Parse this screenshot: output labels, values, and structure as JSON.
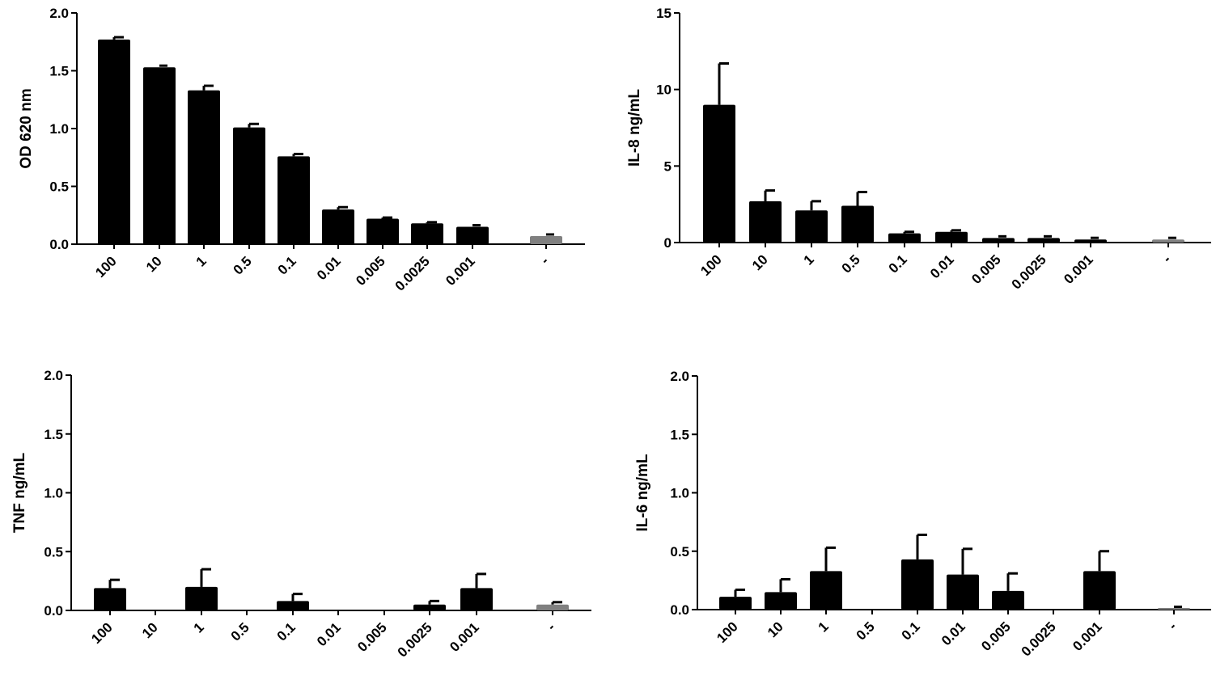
{
  "chart_data": [
    {
      "type": "bar",
      "ylabel": "OD 620 nm",
      "ylim": [
        0,
        2.0
      ],
      "yticks": [
        0.0,
        0.5,
        1.0,
        1.5,
        2.0
      ],
      "ytick_labels": [
        "0.0",
        "0.5",
        "1.0",
        "1.5",
        "2.0"
      ],
      "categories": [
        "100",
        "10",
        "1",
        "0.5",
        "0.1",
        "0.01",
        "0.005",
        "0.0025",
        "0.001",
        "-"
      ],
      "values": [
        1.77,
        1.53,
        1.33,
        1.01,
        0.76,
        0.3,
        0.22,
        0.18,
        0.15,
        0.07
      ],
      "errors": [
        0.02,
        0.0,
        0.04,
        0.03,
        0.02,
        0.02,
        0.01,
        0.01,
        0.0,
        0.0
      ],
      "colors": [
        "#000000",
        "#000000",
        "#000000",
        "#000000",
        "#000000",
        "#000000",
        "#000000",
        "#000000",
        "#000000",
        "#808080"
      ]
    },
    {
      "type": "bar",
      "ylabel": "IL-8 ng/mL",
      "ylim": [
        0,
        15
      ],
      "yticks": [
        0,
        5,
        10,
        15
      ],
      "ytick_labels": [
        "0",
        "5",
        "10",
        "15"
      ],
      "categories": [
        "100",
        "10",
        "1",
        "0.5",
        "0.1",
        "0.01",
        "0.005",
        "0.0025",
        "0.001",
        "-"
      ],
      "values": [
        9.0,
        2.7,
        2.1,
        2.4,
        0.6,
        0.7,
        0.3,
        0.3,
        0.2,
        0.2
      ],
      "errors": [
        2.7,
        0.7,
        0.6,
        0.9,
        0.1,
        0.1,
        0.0,
        0.0,
        0.0,
        0.0
      ],
      "colors": [
        "#000000",
        "#000000",
        "#000000",
        "#000000",
        "#000000",
        "#000000",
        "#000000",
        "#000000",
        "#000000",
        "#808080"
      ]
    },
    {
      "type": "bar",
      "ylabel": "TNF ng/mL",
      "ylim": [
        0,
        2.0
      ],
      "yticks": [
        0.0,
        0.5,
        1.0,
        1.5,
        2.0
      ],
      "ytick_labels": [
        "0.0",
        "0.5",
        "1.0",
        "1.5",
        "2.0"
      ],
      "categories": [
        "100",
        "10",
        "1",
        "0.5",
        "0.1",
        "0.01",
        "0.005",
        "0.0025",
        "0.001",
        "-"
      ],
      "values": [
        0.19,
        0.0,
        0.2,
        0.0,
        0.08,
        0.0,
        0.0,
        0.05,
        0.19,
        0.05
      ],
      "errors": [
        0.07,
        0.0,
        0.15,
        0.0,
        0.06,
        0.0,
        0.0,
        0.03,
        0.12,
        0.02
      ],
      "colors": [
        "#000000",
        "#000000",
        "#000000",
        "#000000",
        "#000000",
        "#000000",
        "#000000",
        "#000000",
        "#000000",
        "#808080"
      ]
    },
    {
      "type": "bar",
      "ylabel": "IL-6 ng/mL",
      "ylim": [
        0,
        2.0
      ],
      "yticks": [
        0.0,
        0.5,
        1.0,
        1.5,
        2.0
      ],
      "ytick_labels": [
        "0.0",
        "0.5",
        "1.0",
        "1.5",
        "2.0"
      ],
      "categories": [
        "100",
        "10",
        "1",
        "0.5",
        "0.1",
        "0.01",
        "0.005",
        "0.0025",
        "0.001",
        "-"
      ],
      "values": [
        0.11,
        0.15,
        0.33,
        0.0,
        0.43,
        0.3,
        0.16,
        0.0,
        0.33,
        0.01
      ],
      "errors": [
        0.06,
        0.11,
        0.2,
        0.0,
        0.21,
        0.22,
        0.15,
        0.0,
        0.17,
        0.0
      ],
      "colors": [
        "#000000",
        "#000000",
        "#000000",
        "#000000",
        "#000000",
        "#000000",
        "#000000",
        "#000000",
        "#000000",
        "#808080"
      ]
    }
  ]
}
